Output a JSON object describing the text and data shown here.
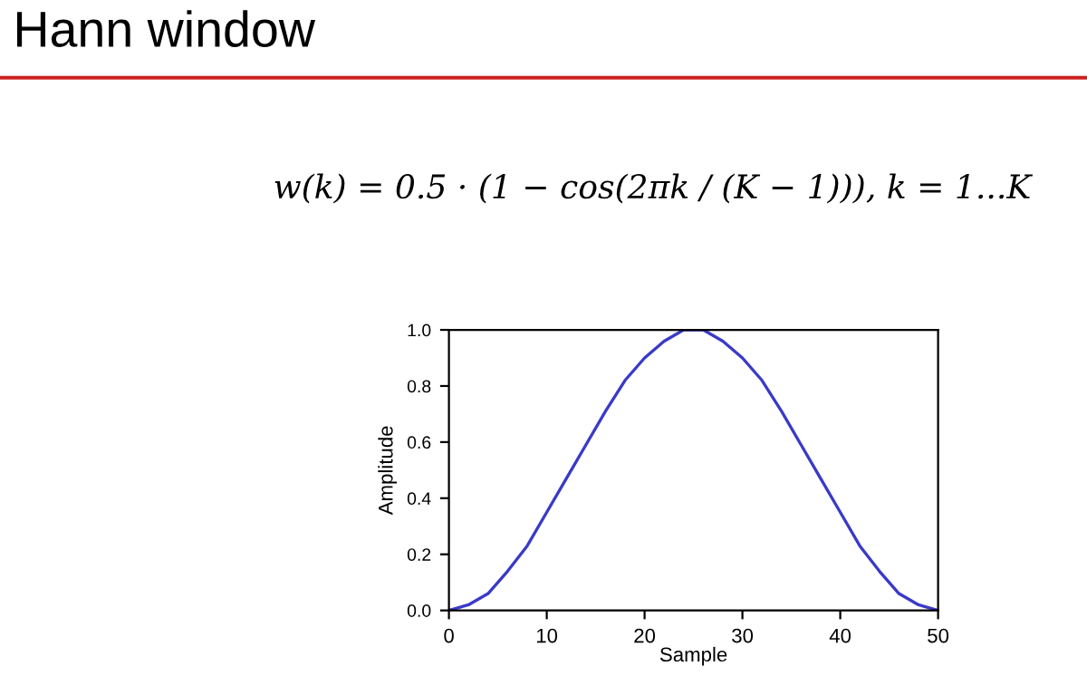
{
  "chart_data": {
    "type": "line",
    "title": "Hann window",
    "annotations": [
      "w(k) = 0.5 · (1 − cos(2πk / (K − 1))), k = 1...K"
    ],
    "xlabel": "Sample",
    "ylabel": "Amplitude",
    "x": [
      0,
      2,
      4,
      6,
      8,
      10,
      12,
      14,
      16,
      18,
      20,
      22,
      24,
      25,
      26,
      28,
      30,
      32,
      34,
      36,
      38,
      40,
      42,
      44,
      46,
      48,
      50
    ],
    "series": [
      {
        "color": "#3a3ac8",
        "values": [
          0,
          0.02,
          0.06,
          0.14,
          0.23,
          0.35,
          0.47,
          0.59,
          0.71,
          0.82,
          0.9,
          0.96,
          1.0,
          1.0,
          1.0,
          0.96,
          0.9,
          0.82,
          0.71,
          0.59,
          0.47,
          0.35,
          0.23,
          0.14,
          0.06,
          0.02,
          0
        ]
      }
    ],
    "xlim": [
      0,
      50
    ],
    "xticks": [
      0,
      10,
      20,
      30,
      40,
      50
    ],
    "ylim": [
      0,
      1
    ],
    "yticks": [
      {
        "value": 0,
        "label": "0.0"
      },
      {
        "value": 0.2,
        "label": "0.2"
      },
      {
        "value": 0.4,
        "label": "0.4"
      },
      {
        "value": 0.6,
        "label": "0.6"
      },
      {
        "value": 0.8,
        "label": "0.8"
      },
      {
        "value": 1,
        "label": "1.0"
      }
    ],
    "grid": false,
    "legend": false
  }
}
